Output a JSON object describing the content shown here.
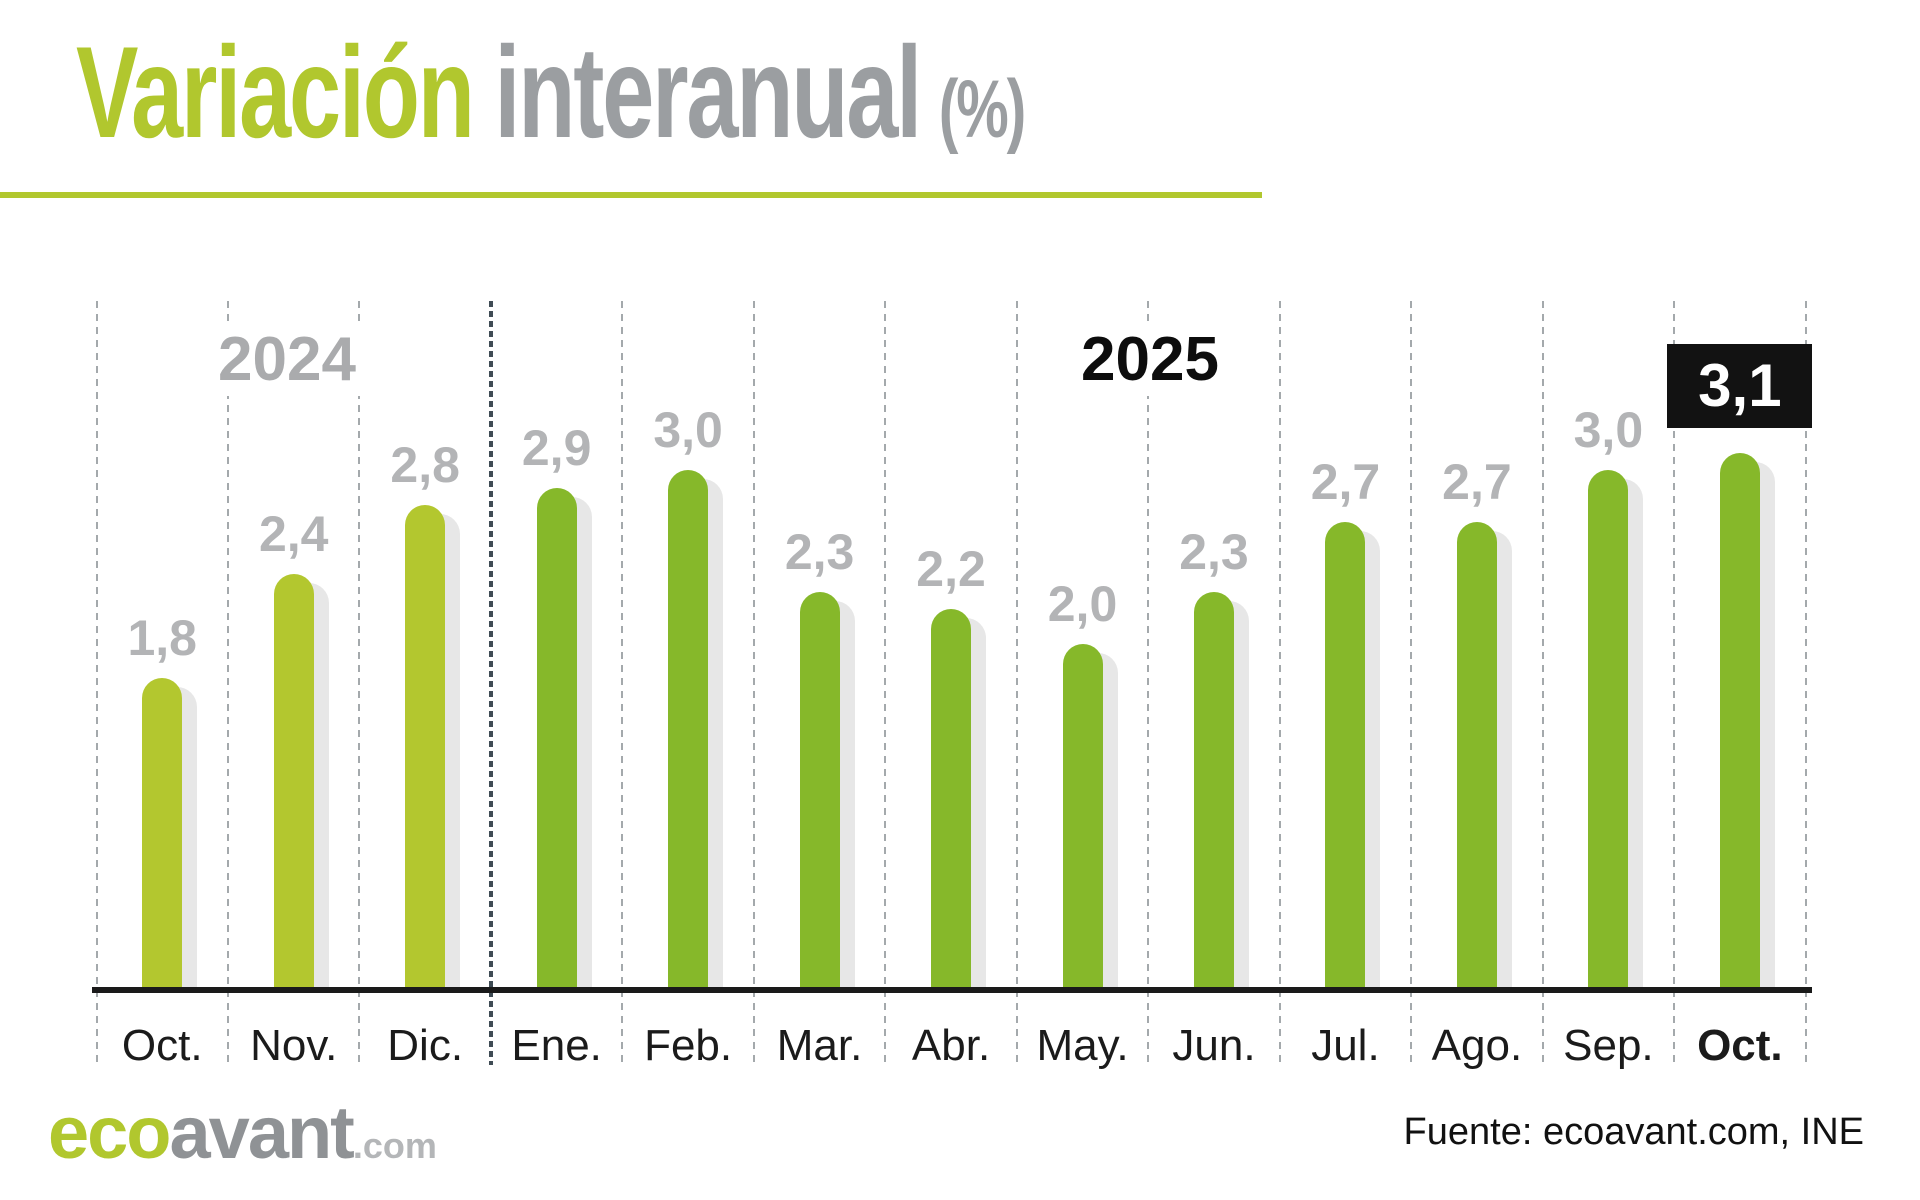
{
  "page": {
    "background": "#ffffff"
  },
  "title": {
    "highlight": "Variación",
    "rest": "interanual",
    "unit": "(%)",
    "highlight_color": "#b1c72e",
    "rest_color": "#9b9ea1"
  },
  "chart_data": {
    "type": "bar",
    "title": "Variación interanual (%)",
    "categories": [
      "Oct.",
      "Nov.",
      "Dic.",
      "Ene.",
      "Feb.",
      "Mar.",
      "Abr.",
      "May.",
      "Jun.",
      "Jul.",
      "Ago.",
      "Sep.",
      "Oct."
    ],
    "values": [
      1.8,
      2.4,
      2.8,
      2.9,
      3.0,
      2.3,
      2.2,
      2.0,
      2.3,
      2.7,
      2.7,
      3.0,
      3.1
    ],
    "value_labels": [
      "1,8",
      "2,4",
      "2,8",
      "2,9",
      "3,0",
      "2,3",
      "2,2",
      "2,0",
      "2,3",
      "2,7",
      "2,7",
      "3,0",
      "3,1"
    ],
    "category_years": [
      "2024",
      "2024",
      "2024",
      "2025",
      "2025",
      "2025",
      "2025",
      "2025",
      "2025",
      "2025",
      "2025",
      "2025",
      "2025"
    ],
    "year_labels": [
      "2024",
      "2025"
    ],
    "year_divider_after_index": 2,
    "highlight_index": 12,
    "last_category_bold": true,
    "ylim": [
      0,
      3.5
    ],
    "grid": "vertical-dashed",
    "legend": "none",
    "colors": {
      "bar_2024": "#b3c72f",
      "bar_2025": "#86b82a",
      "bar_shadow": "#e7e7e7",
      "value_label": "#b3b4b6",
      "year_2024": "#aaabad",
      "year_2025": "#0d0d0d",
      "highlight_bg": "#121212",
      "highlight_text": "#ffffff",
      "gridline": "#a4a9ac",
      "year_divider": "#3f4c55",
      "axis": "#1a1a1a"
    }
  },
  "footer": {
    "logo": {
      "eco": "eco",
      "avant": "avant",
      "tld": ".com",
      "eco_color": "#b1c72e",
      "avant_color": "#8f9295",
      "tld_color": "#b4b6b8"
    },
    "source": "Fuente: ecoavant.com, INE",
    "source_color": "#111111"
  }
}
